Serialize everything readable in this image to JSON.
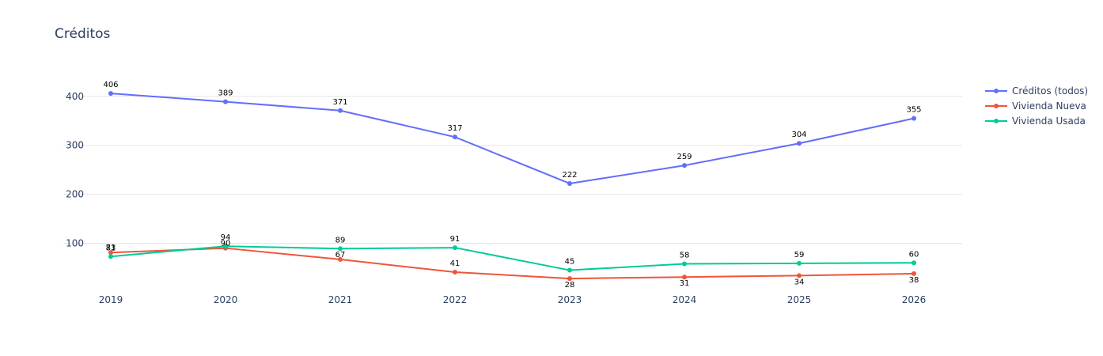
{
  "chart_data": {
    "type": "line",
    "title": "Créditos",
    "xlabel": "",
    "ylabel": "",
    "categories": [
      "2019",
      "2020",
      "2021",
      "2022",
      "2023",
      "2024",
      "2025",
      "2026"
    ],
    "yticks": [
      100,
      200,
      300,
      400
    ],
    "grid": true,
    "legend_position": "right",
    "series": [
      {
        "name": "Créditos (todos)",
        "color": "#636efa",
        "values": [
          406,
          389,
          371,
          317,
          222,
          259,
          304,
          355
        ],
        "label_position": "top"
      },
      {
        "name": "Vivienda Nueva",
        "color": "#EF553B",
        "values": [
          81,
          90,
          67,
          41,
          28,
          31,
          34,
          38
        ],
        "label_position": "mixed"
      },
      {
        "name": "Vivienda Usada",
        "color": "#00cc96",
        "values": [
          73,
          94,
          89,
          91,
          45,
          58,
          59,
          60
        ],
        "label_position": "mixed"
      }
    ]
  }
}
